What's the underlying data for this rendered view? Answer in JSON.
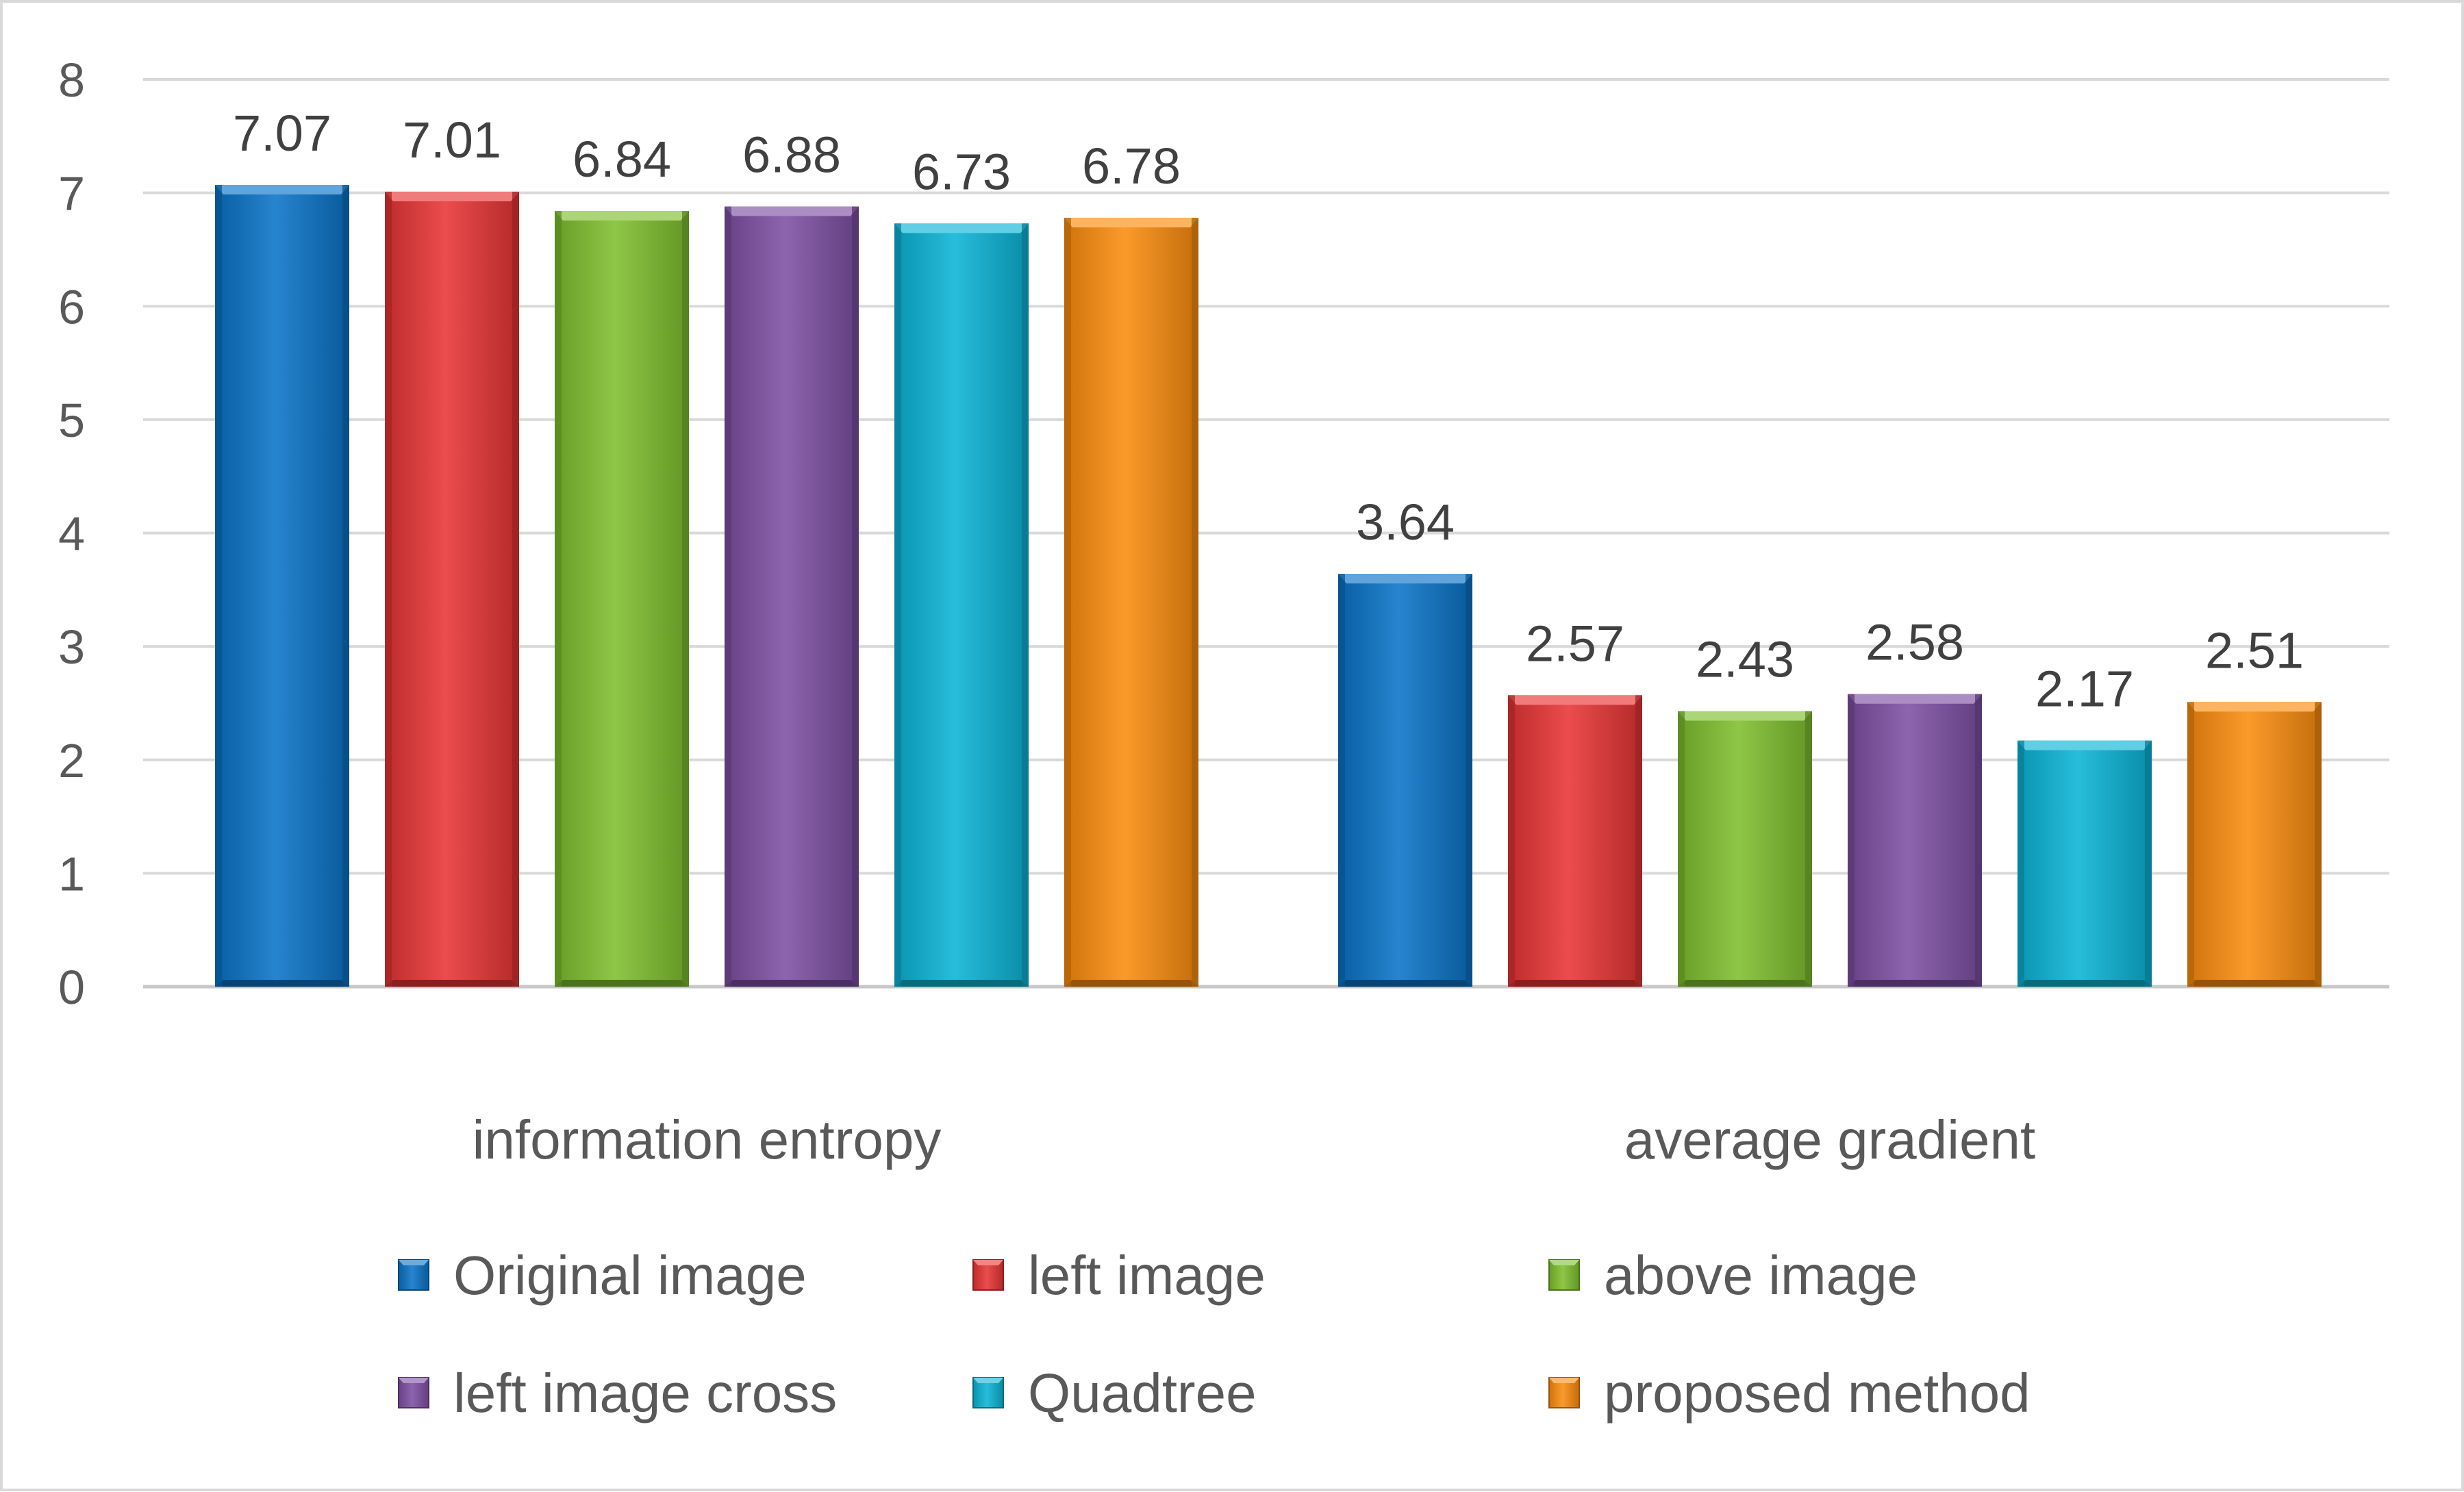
{
  "chart_data": {
    "type": "bar",
    "title": "",
    "xlabel": "",
    "ylabel": "",
    "ylim": [
      0,
      8
    ],
    "yticks": [
      "0",
      "1",
      "2",
      "3",
      "4",
      "5",
      "6",
      "7",
      "8"
    ],
    "grid": true,
    "legend_position": "bottom",
    "categories": [
      "information entropy",
      "average gradient"
    ],
    "series": [
      {
        "name": "Original image",
        "color": "#0a73c7",
        "values": [
          7.07,
          3.64
        ],
        "labels": [
          "7.07",
          "3.64"
        ]
      },
      {
        "name": "left image",
        "color": "#e83434",
        "values": [
          7.01,
          2.57
        ],
        "labels": [
          "7.01",
          "2.57"
        ]
      },
      {
        "name": "above image",
        "color": "#7fbf2e",
        "values": [
          6.84,
          2.43
        ],
        "labels": [
          "6.84",
          "2.43"
        ]
      },
      {
        "name": "left image cross",
        "color": "#7d4fa3",
        "values": [
          6.88,
          2.58
        ],
        "labels": [
          "6.88",
          "2.58"
        ]
      },
      {
        "name": "Quadtree",
        "color": "#0ab4d6",
        "values": [
          6.73,
          2.17
        ],
        "labels": [
          "6.73",
          "2.17"
        ]
      },
      {
        "name": "proposed method",
        "color": "#fb8c0e",
        "values": [
          6.78,
          2.51
        ],
        "labels": [
          "6.78",
          "2.51"
        ]
      }
    ]
  }
}
